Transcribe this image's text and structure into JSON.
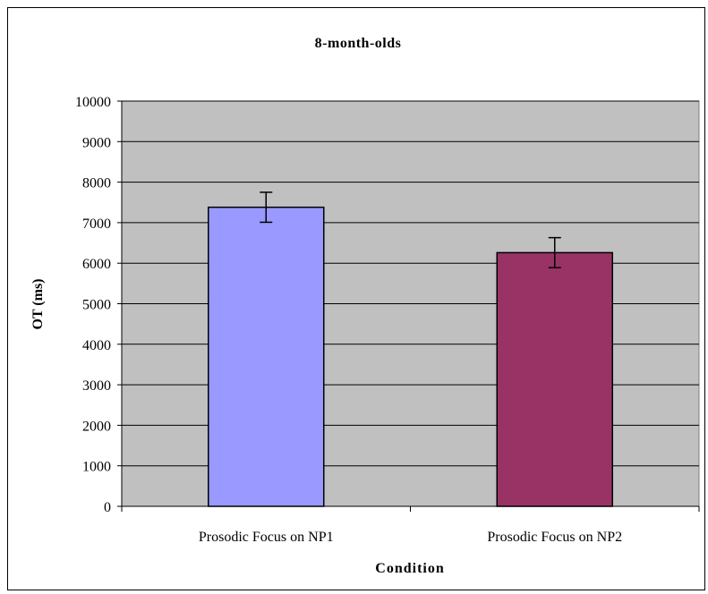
{
  "chart_data": {
    "type": "bar",
    "title": "8-month-olds",
    "xlabel": "Condition",
    "ylabel": "OT (ms)",
    "categories": [
      "Prosodic Focus on NP1",
      "Prosodic Focus on NP2"
    ],
    "values": [
      7380,
      6260
    ],
    "errors": [
      370,
      370
    ],
    "ylim": [
      0,
      10000
    ],
    "yticks": [
      0,
      1000,
      2000,
      3000,
      4000,
      5000,
      6000,
      7000,
      8000,
      9000,
      10000
    ],
    "grid": true,
    "legend": "none",
    "colors": {
      "bars": [
        "#9999ff",
        "#993366"
      ],
      "plot_background": "#c0c0c0",
      "gridline": "#000000"
    }
  }
}
